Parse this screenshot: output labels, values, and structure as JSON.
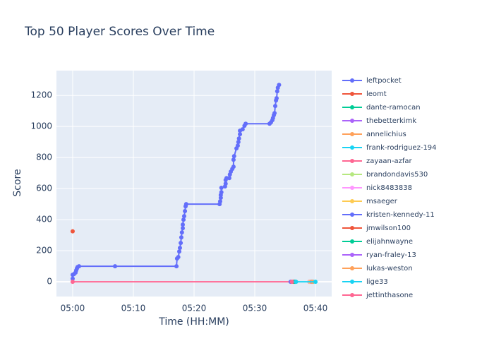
{
  "chart_data": {
    "type": "line",
    "title": "Top 50 Player Scores Over Time",
    "x_label": "Time (HH:MM)",
    "y_label": "Score",
    "xlim": [
      -2.67,
      42.67
    ],
    "ylim": [
      -95,
      1360
    ],
    "xticks": [
      {
        "value": 0,
        "label": "05:00"
      },
      {
        "value": 10,
        "label": "05:10"
      },
      {
        "value": 20,
        "label": "05:20"
      },
      {
        "value": 30,
        "label": "05:30"
      },
      {
        "value": 40,
        "label": "05:40"
      }
    ],
    "yticks": [
      0,
      200,
      400,
      600,
      800,
      1000,
      1200
    ],
    "grid": true,
    "series": [
      {
        "name": "leftpocket",
        "color": "#636efa",
        "x": [
          0,
          0,
          0.23,
          0.47,
          0.58,
          0.7,
          0.81,
          1.05,
          6.98,
          17.1,
          17.2,
          17.4,
          17.56,
          17.67,
          17.8,
          17.9,
          18.0,
          18.14,
          18.14,
          18.26,
          18.37,
          18.5,
          18.6,
          18.7,
          24.2,
          24.3,
          24.4,
          24.4,
          24.5,
          24.5,
          25.1,
          25.2,
          25.2,
          25.35,
          25.8,
          25.9,
          26.05,
          26.3,
          26.5,
          26.5,
          26.6,
          26.98,
          27.2,
          27.3,
          27.4,
          27.56,
          27.56,
          28.0,
          28.3,
          28.5,
          32.44,
          32.67,
          32.9,
          33.0,
          33.14,
          33.26,
          33.37,
          33.5,
          33.6,
          33.7,
          33.8,
          34.0
        ],
        "values": [
          20,
          45,
          50,
          59,
          73,
          86,
          95,
          100,
          100,
          100,
          150,
          159,
          195,
          218,
          250,
          286,
          318,
          345,
          368,
          400,
          423,
          455,
          486,
          500,
          500,
          518,
          541,
          559,
          577,
          605,
          614,
          632,
          655,
          668,
          668,
          691,
          709,
          727,
          741,
          786,
          809,
          859,
          877,
          900,
          923,
          950,
          973,
          982,
          1005,
          1018,
          1018,
          1027,
          1041,
          1055,
          1073,
          1086,
          1132,
          1168,
          1182,
          1227,
          1250,
          1268
        ]
      },
      {
        "name": "leomt",
        "color": "#EF553B",
        "x": [
          0
        ],
        "values": [
          325
        ]
      },
      {
        "name": "dante-ramocan",
        "color": "#00cc96",
        "x": [
          36.7
        ],
        "values": [
          0
        ]
      },
      {
        "name": "thebetterkimk",
        "color": "#ab63fa",
        "x": [
          36.5
        ],
        "values": [
          0
        ]
      },
      {
        "name": "annelichius",
        "color": "#FFA15A",
        "x": [
          39.0
        ],
        "values": [
          0
        ]
      },
      {
        "name": "frank-rodriguez-194",
        "color": "#19d3f3",
        "x": [
          39.6
        ],
        "values": [
          0
        ]
      },
      {
        "name": "zayaan-azfar",
        "color": "#FF6692",
        "x": [
          0,
          36.0
        ],
        "values": [
          0,
          0
        ]
      },
      {
        "name": "brandondavis530",
        "color": "#B6E880",
        "x": [
          39.3
        ],
        "values": [
          0
        ]
      },
      {
        "name": "nick8483838",
        "color": "#FF97FF",
        "x": [
          39.1
        ],
        "values": [
          0
        ]
      },
      {
        "name": "msaeger",
        "color": "#FECB52",
        "x": [
          39.2
        ],
        "values": [
          0
        ]
      },
      {
        "name": "kristen-kennedy-11",
        "color": "#636efa",
        "x": [
          35.9
        ],
        "values": [
          0
        ]
      },
      {
        "name": "jmwilson100",
        "color": "#EF553B",
        "x": [
          36.3
        ],
        "values": [
          0
        ]
      },
      {
        "name": "elijahnwayne",
        "color": "#00cc96",
        "x": [
          36.6
        ],
        "values": [
          0
        ]
      },
      {
        "name": "ryan-fraley-13",
        "color": "#ab63fa",
        "x": [
          39.4
        ],
        "values": [
          0
        ]
      },
      {
        "name": "lukas-weston",
        "color": "#FFA15A",
        "x": [
          39.5
        ],
        "values": [
          0
        ]
      },
      {
        "name": "lige33",
        "color": "#19d3f3",
        "x": [
          36.8,
          40.0
        ],
        "values": [
          0,
          0
        ]
      },
      {
        "name": "jettinthasone",
        "color": "#FF6692",
        "x": [
          36.1
        ],
        "values": [
          0
        ]
      }
    ]
  }
}
